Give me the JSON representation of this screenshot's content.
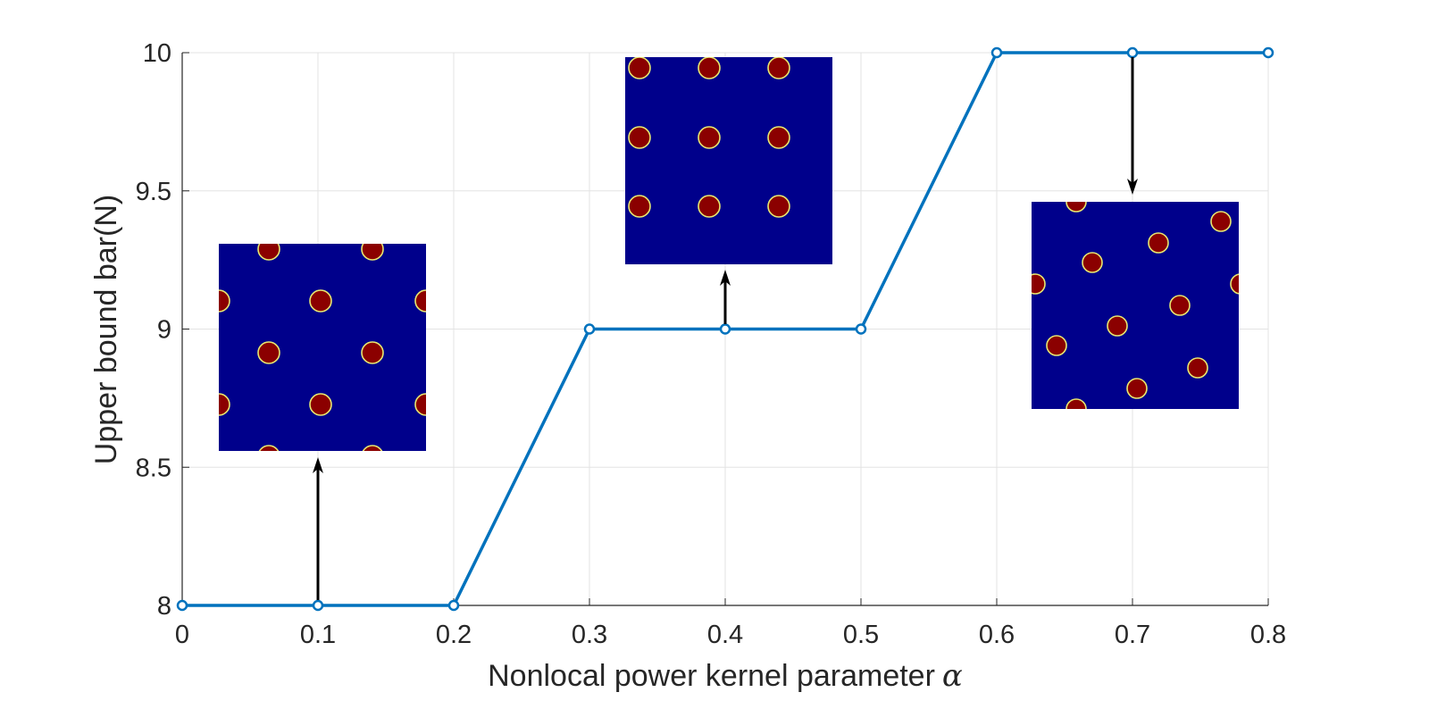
{
  "chart_data": {
    "type": "line",
    "xlabel": "Nonlocal power kernel parameter",
    "xlabel_symbol": "α",
    "ylabel": "Upper bound bar(N)",
    "xlim": [
      0,
      0.8
    ],
    "ylim": [
      8,
      10
    ],
    "x_ticks": [
      "0",
      "0.1",
      "0.2",
      "0.3",
      "0.4",
      "0.5",
      "0.6",
      "0.7",
      "0.8"
    ],
    "y_ticks": [
      "8",
      "8.5",
      "9",
      "9.5",
      "10"
    ],
    "grid": true,
    "series": [
      {
        "color": "#0072BD",
        "marker": "circle",
        "x": [
          0,
          0.1,
          0.2,
          0.3,
          0.4,
          0.5,
          0.6,
          0.7,
          0.8
        ],
        "y": [
          8,
          8,
          8,
          9,
          9,
          9,
          10,
          10,
          10
        ]
      }
    ],
    "insets": [
      {
        "name": "pattern-inset-alpha-0.1",
        "points_to": [
          0.1,
          8
        ],
        "background": "#00008B",
        "dot_color": "#8B0000",
        "pattern": "hexagonal"
      },
      {
        "name": "pattern-inset-alpha-0.4",
        "points_to": [
          0.4,
          9
        ],
        "background": "#00008B",
        "dot_color": "#8B0000",
        "pattern": "square-3x3"
      },
      {
        "name": "pattern-inset-alpha-0.7",
        "points_to": [
          0.7,
          10
        ],
        "background": "#00008B",
        "dot_color": "#8B0000",
        "pattern": "rotated-lattice"
      }
    ]
  }
}
